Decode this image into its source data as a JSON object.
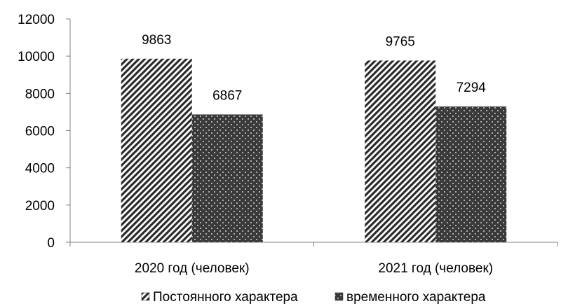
{
  "chart_data": {
    "type": "bar",
    "categories": [
      "2020 год (человек)",
      "2021 год (человек)"
    ],
    "series": [
      {
        "name": "Постоянного характера",
        "values": [
          9863,
          9765
        ],
        "pattern": "diagonal-stripes",
        "color": "#2b2b2b"
      },
      {
        "name": "временного характера",
        "values": [
          6867,
          7294
        ],
        "pattern": "dotted-dark",
        "color": "#3a3a3a"
      }
    ],
    "ylim": [
      0,
      12000
    ],
    "yticks": [
      "0",
      "2000",
      "4000",
      "6000",
      "8000",
      "10000",
      "12000"
    ],
    "data_labels": [
      [
        "9863",
        "9765"
      ],
      [
        "6867",
        "7294"
      ]
    ],
    "grid": false,
    "legend_position": "bottom"
  }
}
